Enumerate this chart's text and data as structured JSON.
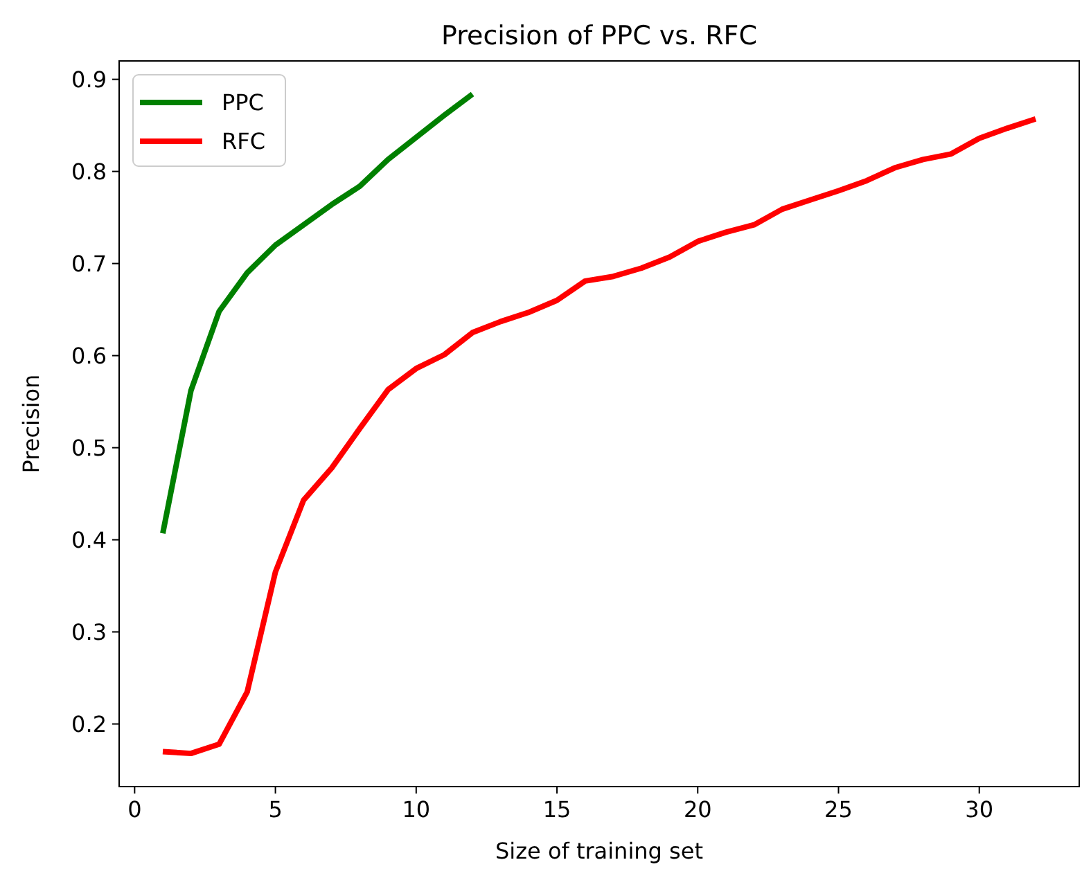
{
  "chart_data": {
    "type": "line",
    "title": "Precision of PPC vs. RFC",
    "xlabel": "Size of training set",
    "ylabel": "Precision",
    "xlim": [
      -0.55,
      33.55
    ],
    "xticks": [
      0,
      5,
      10,
      15,
      20,
      25,
      30
    ],
    "ylim": [
      0.132,
      0.92
    ],
    "yticks": [
      0.2,
      0.3,
      0.4,
      0.5,
      0.6,
      0.7,
      0.8,
      0.9
    ],
    "grid": false,
    "legend": "top left",
    "line_style": "solid",
    "series": [
      {
        "name": "PPC",
        "color": "#008000",
        "x": [
          1,
          2,
          3,
          4,
          5,
          6,
          7,
          8,
          9,
          10,
          11,
          12
        ],
        "values": [
          0.407,
          0.562,
          0.648,
          0.69,
          0.72,
          0.742,
          0.764,
          0.784,
          0.813,
          0.837,
          0.861,
          0.884
        ]
      },
      {
        "name": "RFC",
        "color": "#ff0000",
        "x": [
          1,
          2,
          3,
          4,
          5,
          6,
          7,
          8,
          9,
          10,
          11,
          12,
          13,
          14,
          15,
          16,
          17,
          18,
          19,
          20,
          21,
          22,
          23,
          24,
          25,
          26,
          27,
          28,
          29,
          30,
          31,
          32
        ],
        "values": [
          0.17,
          0.168,
          0.178,
          0.235,
          0.365,
          0.443,
          0.478,
          0.521,
          0.563,
          0.586,
          0.601,
          0.625,
          0.637,
          0.647,
          0.66,
          0.681,
          0.686,
          0.695,
          0.707,
          0.724,
          0.734,
          0.742,
          0.759,
          0.769,
          0.779,
          0.79,
          0.804,
          0.813,
          0.819,
          0.836,
          0.847,
          0.857
        ]
      }
    ]
  }
}
